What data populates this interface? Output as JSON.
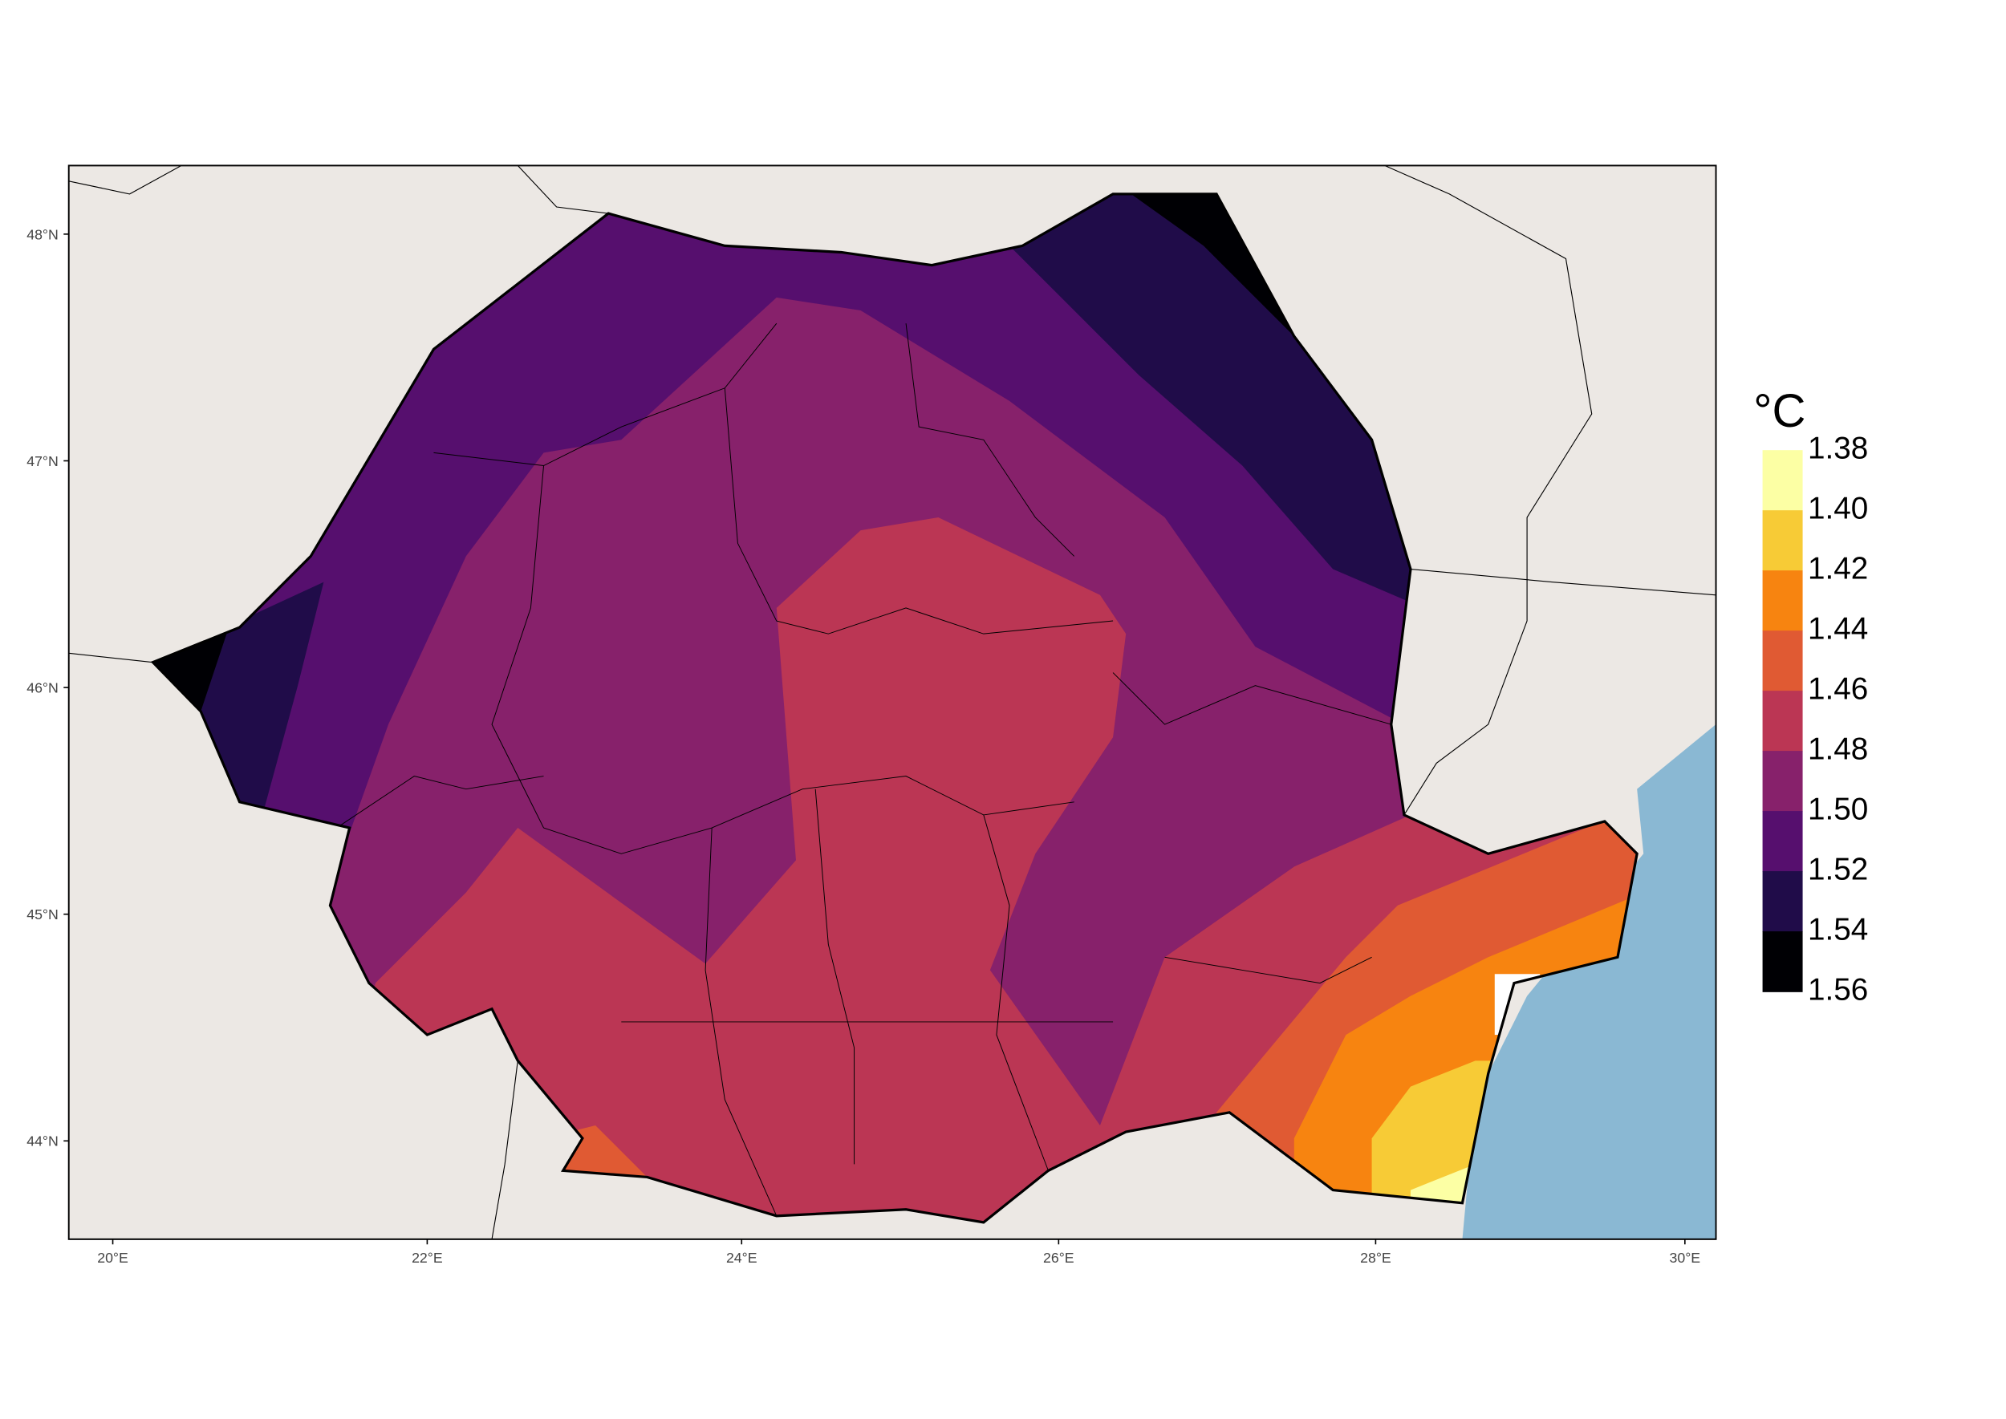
{
  "x_axis": {
    "labels": [
      "20°E",
      "22°E",
      "24°E",
      "26°E",
      "28°E",
      "30°E"
    ]
  },
  "y_axis": {
    "labels": [
      "48°N",
      "47°N",
      "46°N",
      "45°N",
      "44°N"
    ]
  },
  "legend": {
    "title": "°C",
    "labels": [
      "1.38",
      "1.40",
      "1.42",
      "1.44",
      "1.46",
      "1.48",
      "1.50",
      "1.52",
      "1.54",
      "1.56"
    ],
    "colors": [
      "#fcffa4",
      "#f7cb36",
      "#f78410",
      "#e05a33",
      "#bb3654",
      "#87216b",
      "#560f6e",
      "#200c49",
      "#000004"
    ]
  }
}
